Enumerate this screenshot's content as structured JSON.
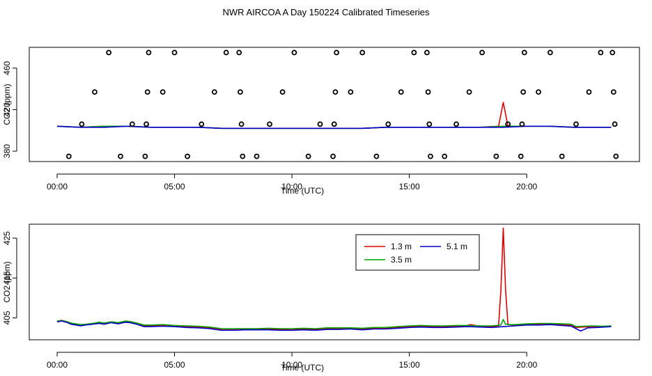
{
  "title": "NWR AIRCOA A  Day 150224  Calibrated Timeseries",
  "colors": {
    "1.3 m": "#e00000",
    "3.5 m": "#00a000",
    "5.1 m": "#0000cc",
    "markers": "#000000"
  },
  "chart_data": [
    {
      "type": "scatter+line",
      "xlabel": "Time (UTC)",
      "ylabel": "CO2 (ppm)",
      "xlim": [
        0,
        24
      ],
      "ylim": [
        370,
        480
      ],
      "x_ticks": [
        0,
        5,
        10,
        15,
        20
      ],
      "x_tick_labels": [
        "00:00",
        "05:00",
        "10:00",
        "15:00",
        "20:00"
      ],
      "y_ticks": [
        380,
        420,
        460
      ],
      "y_tick_labels": [
        "380",
        "420",
        "460"
      ],
      "grid": false,
      "markers_hours": [
        {
          "x": 0.5,
          "y": 375
        },
        {
          "x": 2.2,
          "y": 475
        },
        {
          "x": 1.6,
          "y": 437
        },
        {
          "x": 1.05,
          "y": 406
        },
        {
          "x": 2.7,
          "y": 375
        },
        {
          "x": 3.2,
          "y": 406
        },
        {
          "x": 3.75,
          "y": 375
        },
        {
          "x": 3.8,
          "y": 406
        },
        {
          "x": 3.85,
          "y": 437
        },
        {
          "x": 3.9,
          "y": 475
        },
        {
          "x": 4.5,
          "y": 437
        },
        {
          "x": 5.0,
          "y": 475
        },
        {
          "x": 5.55,
          "y": 375
        },
        {
          "x": 6.15,
          "y": 406
        },
        {
          "x": 6.7,
          "y": 437
        },
        {
          "x": 7.2,
          "y": 475
        },
        {
          "x": 7.75,
          "y": 475
        },
        {
          "x": 7.8,
          "y": 437
        },
        {
          "x": 7.85,
          "y": 406
        },
        {
          "x": 7.9,
          "y": 375
        },
        {
          "x": 8.5,
          "y": 375
        },
        {
          "x": 9.05,
          "y": 406
        },
        {
          "x": 9.6,
          "y": 437
        },
        {
          "x": 10.1,
          "y": 475
        },
        {
          "x": 10.7,
          "y": 375
        },
        {
          "x": 11.2,
          "y": 406
        },
        {
          "x": 11.75,
          "y": 375
        },
        {
          "x": 11.8,
          "y": 406
        },
        {
          "x": 11.85,
          "y": 437
        },
        {
          "x": 11.9,
          "y": 475
        },
        {
          "x": 12.5,
          "y": 437
        },
        {
          "x": 13.0,
          "y": 475
        },
        {
          "x": 13.6,
          "y": 375
        },
        {
          "x": 14.1,
          "y": 406
        },
        {
          "x": 14.65,
          "y": 437
        },
        {
          "x": 15.2,
          "y": 475
        },
        {
          "x": 15.75,
          "y": 475
        },
        {
          "x": 15.8,
          "y": 437
        },
        {
          "x": 15.85,
          "y": 406
        },
        {
          "x": 15.9,
          "y": 375
        },
        {
          "x": 16.5,
          "y": 375
        },
        {
          "x": 17.0,
          "y": 406
        },
        {
          "x": 17.55,
          "y": 437
        },
        {
          "x": 18.1,
          "y": 475
        },
        {
          "x": 18.7,
          "y": 375
        },
        {
          "x": 19.2,
          "y": 406
        },
        {
          "x": 19.75,
          "y": 375
        },
        {
          "x": 19.8,
          "y": 406
        },
        {
          "x": 19.85,
          "y": 437
        },
        {
          "x": 19.9,
          "y": 475
        },
        {
          "x": 20.5,
          "y": 437
        },
        {
          "x": 21.0,
          "y": 475
        },
        {
          "x": 21.5,
          "y": 375
        },
        {
          "x": 22.1,
          "y": 406
        },
        {
          "x": 22.65,
          "y": 437
        },
        {
          "x": 23.15,
          "y": 475
        },
        {
          "x": 23.65,
          "y": 475
        },
        {
          "x": 23.7,
          "y": 437
        },
        {
          "x": 23.75,
          "y": 406
        },
        {
          "x": 23.8,
          "y": 375
        }
      ],
      "series": [
        {
          "name": "1.3 m",
          "x": [
            0,
            1,
            2,
            3,
            4,
            5,
            6,
            7,
            8,
            9,
            10,
            11,
            12,
            13,
            14,
            15,
            16,
            17,
            18,
            18.8,
            19.0,
            19.2,
            20,
            21,
            22,
            23,
            23.6
          ],
          "values": [
            404,
            403,
            404,
            404,
            403,
            403,
            403,
            402,
            402,
            402,
            402,
            402,
            402,
            402,
            403,
            403,
            403,
            403,
            403,
            404,
            427,
            404,
            404,
            404,
            403,
            403,
            403
          ]
        },
        {
          "name": "3.5 m",
          "x": [
            0,
            1,
            2,
            3,
            4,
            5,
            6,
            7,
            8,
            9,
            10,
            11,
            12,
            13,
            14,
            15,
            16,
            17,
            18,
            19,
            20,
            21,
            22,
            23,
            23.6
          ],
          "values": [
            404,
            403,
            404,
            404,
            403,
            403,
            403,
            402,
            402,
            402,
            402,
            402,
            402,
            402,
            403,
            403,
            403,
            403,
            403,
            404,
            404,
            404,
            403,
            403,
            403
          ]
        },
        {
          "name": "5.1 m",
          "x": [
            0,
            1,
            2,
            3,
            4,
            5,
            6,
            7,
            8,
            9,
            10,
            11,
            12,
            13,
            14,
            15,
            16,
            17,
            18,
            19,
            20,
            21,
            22,
            23,
            23.6
          ],
          "values": [
            404,
            403,
            403,
            404,
            403,
            403,
            403,
            402,
            402,
            402,
            402,
            402,
            402,
            402,
            403,
            403,
            403,
            403,
            403,
            403,
            404,
            404,
            403,
            403,
            403
          ]
        }
      ]
    },
    {
      "type": "line",
      "xlabel": "Time (UTC)",
      "ylabel": "CO2 (ppm)",
      "xlim": [
        0,
        24
      ],
      "ylim": [
        399.5,
        428.5
      ],
      "x_ticks": [
        0,
        5,
        10,
        15,
        20
      ],
      "x_tick_labels": [
        "00:00",
        "05:00",
        "10:00",
        "15:00",
        "20:00"
      ],
      "y_ticks": [
        405,
        415,
        425
      ],
      "y_tick_labels": [
        "405",
        "415",
        "425"
      ],
      "grid": false,
      "legend": {
        "position": "top-center-right",
        "entries": [
          "1.3 m",
          "5.1 m",
          "3.5 m"
        ]
      },
      "series": [
        {
          "name": "1.3 m",
          "x": [
            0,
            0.2,
            0.4,
            0.6,
            0.8,
            1.0,
            1.2,
            1.5,
            1.8,
            2.0,
            2.3,
            2.6,
            2.9,
            3.1,
            3.4,
            3.7,
            4.0,
            4.5,
            5.0,
            5.5,
            6.0,
            6.5,
            7.0,
            7.5,
            8.0,
            8.5,
            9.0,
            9.5,
            10.0,
            10.5,
            11.0,
            11.5,
            12.0,
            12.5,
            13.0,
            13.5,
            14.0,
            14.5,
            15.0,
            15.5,
            16.0,
            16.5,
            17.0,
            17.4,
            17.6,
            18.0,
            18.5,
            18.8,
            18.9,
            19.0,
            19.1,
            19.2,
            19.5,
            20.0,
            20.5,
            21.0,
            21.5,
            21.9,
            22.1,
            22.4,
            22.8,
            23.2,
            23.6
          ],
          "values": [
            404.1,
            404.4,
            404.0,
            403.6,
            403.3,
            403.1,
            403.3,
            403.5,
            403.8,
            403.5,
            403.9,
            403.7,
            404.1,
            404.0,
            403.6,
            403.0,
            403.0,
            403.1,
            402.9,
            402.8,
            402.7,
            402.5,
            402.0,
            402.0,
            402.1,
            402.1,
            402.2,
            402.1,
            402.0,
            402.2,
            402.1,
            402.3,
            402.3,
            402.4,
            402.2,
            402.4,
            402.4,
            402.6,
            402.8,
            402.9,
            402.8,
            402.8,
            402.9,
            403.0,
            403.3,
            402.9,
            402.8,
            403.0,
            412.0,
            427.5,
            412.0,
            403.3,
            403.2,
            403.4,
            403.4,
            403.5,
            403.3,
            403.2,
            402.6,
            402.7,
            402.8,
            402.8,
            402.9
          ]
        },
        {
          "name": "3.5 m",
          "x": [
            0,
            0.2,
            0.4,
            0.6,
            0.8,
            1.0,
            1.2,
            1.5,
            1.8,
            2.0,
            2.3,
            2.6,
            2.9,
            3.1,
            3.4,
            3.7,
            4.0,
            4.5,
            5.0,
            5.5,
            6.0,
            6.5,
            7.0,
            7.5,
            8.0,
            8.5,
            9.0,
            9.5,
            10.0,
            10.5,
            11.0,
            11.5,
            12.0,
            12.5,
            13.0,
            13.5,
            14.0,
            14.5,
            15.0,
            15.5,
            16.0,
            16.5,
            17.0,
            17.5,
            18.0,
            18.5,
            18.9,
            19.0,
            19.1,
            19.3,
            19.5,
            20.0,
            20.5,
            21.0,
            21.5,
            21.9,
            22.1,
            22.4,
            22.8,
            23.2,
            23.6
          ],
          "values": [
            404.2,
            404.3,
            404.1,
            403.7,
            403.5,
            403.3,
            403.4,
            403.6,
            403.9,
            403.7,
            404.0,
            403.8,
            404.2,
            404.1,
            403.7,
            403.2,
            403.2,
            403.3,
            403.1,
            403.0,
            402.9,
            402.7,
            402.3,
            402.3,
            402.3,
            402.3,
            402.4,
            402.3,
            402.3,
            402.4,
            402.3,
            402.5,
            402.5,
            402.5,
            402.4,
            402.6,
            402.6,
            402.8,
            403.0,
            403.1,
            403.0,
            403.0,
            403.1,
            403.1,
            403.0,
            403.0,
            403.2,
            404.6,
            403.4,
            403.3,
            403.3,
            403.5,
            403.6,
            403.6,
            403.5,
            403.4,
            402.8,
            402.9,
            403.0,
            402.9,
            403.0
          ]
        },
        {
          "name": "5.1 m",
          "x": [
            0,
            0.2,
            0.4,
            0.6,
            0.8,
            1.0,
            1.2,
            1.5,
            1.8,
            2.0,
            2.3,
            2.6,
            2.9,
            3.1,
            3.4,
            3.7,
            4.0,
            4.5,
            5.0,
            5.5,
            6.0,
            6.5,
            7.0,
            7.5,
            8.0,
            8.5,
            9.0,
            9.5,
            10.0,
            10.5,
            11.0,
            11.5,
            12.0,
            12.5,
            13.0,
            13.5,
            14.0,
            14.5,
            15.0,
            15.5,
            16.0,
            16.5,
            17.0,
            17.5,
            18.0,
            18.5,
            19.0,
            19.5,
            20.0,
            20.5,
            21.0,
            21.5,
            21.9,
            22.1,
            22.3,
            22.6,
            23.0,
            23.3,
            23.6
          ],
          "values": [
            404.0,
            404.2,
            403.9,
            403.4,
            403.2,
            403.0,
            403.2,
            403.4,
            403.6,
            403.4,
            403.8,
            403.5,
            403.9,
            403.8,
            403.4,
            402.8,
            402.8,
            402.9,
            402.8,
            402.6,
            402.5,
            402.3,
            401.9,
            401.9,
            402.0,
            402.0,
            402.0,
            401.9,
            401.9,
            402.0,
            401.9,
            402.1,
            402.1,
            402.2,
            402.0,
            402.2,
            402.2,
            402.4,
            402.6,
            402.7,
            402.6,
            402.6,
            402.7,
            402.8,
            402.7,
            402.6,
            402.8,
            403.0,
            403.2,
            403.2,
            403.3,
            403.1,
            402.9,
            402.3,
            401.7,
            402.5,
            402.6,
            402.7,
            402.8
          ]
        }
      ]
    }
  ]
}
